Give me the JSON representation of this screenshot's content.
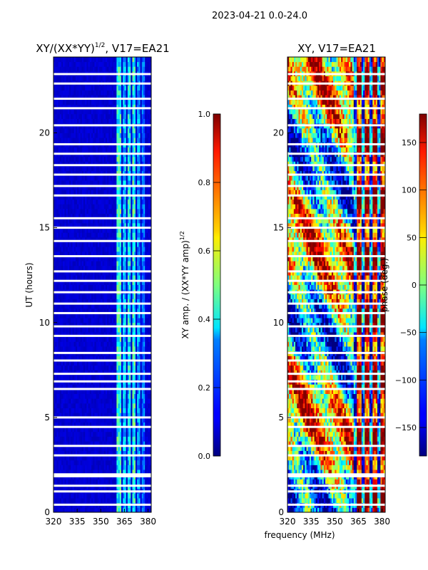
{
  "chart_data": [
    {
      "type": "heatmap",
      "suptitle": "2023-04-21 0.0-24.0",
      "title": "XY/(XX*YY)",
      "title_superscript": "1/2",
      "title_suffix": ", V17=EA21",
      "xlabel": "",
      "ylabel": "UT (hours)",
      "xlim": [
        320,
        382
      ],
      "ylim": [
        0,
        24
      ],
      "xticks": [
        320,
        335,
        350,
        365,
        380
      ],
      "yticks": [
        0,
        5,
        10,
        15,
        20
      ],
      "colorbar": {
        "label": "XY amp. / (XX*YY amp)",
        "label_superscript": "1/2",
        "range": [
          0.0,
          1.0
        ],
        "ticks": [
          "0.0",
          "0.2",
          "0.4",
          "0.6",
          "0.8",
          "1.0"
        ],
        "colormap": "jet"
      },
      "gaps_hours": [
        0.4,
        1.1,
        1.4,
        1.9,
        2.0,
        3.0,
        3.5,
        4.5,
        5.0,
        6.5,
        6.9,
        7.3,
        8.0,
        8.4,
        9.3,
        9.8,
        10.5,
        11.0,
        11.6,
        12.2,
        12.7,
        13.5,
        14.3,
        15.0,
        15.5,
        16.7,
        17.2,
        17.8,
        18.3,
        18.9,
        19.4,
        20.4,
        21.3,
        21.8,
        22.6,
        23.1
      ],
      "description_bands": [
        {
          "from": 360,
          "to": 363,
          "level": 0.45
        },
        {
          "from": 364,
          "to": 366,
          "level": 0.35
        },
        {
          "from": 367,
          "to": 369,
          "level": 0.4
        },
        {
          "from": 370,
          "to": 372,
          "level": 0.45
        },
        {
          "from": 373,
          "to": 375,
          "level": 0.3
        },
        {
          "from": 376,
          "to": 378,
          "level": 0.25
        }
      ]
    },
    {
      "type": "heatmap",
      "title": "XY, V17=EA21",
      "xlabel": "frequency (MHz)",
      "ylabel": "",
      "xlim": [
        320,
        382
      ],
      "ylim": [
        0,
        24
      ],
      "xticks": [
        320,
        335,
        350,
        365,
        380
      ],
      "yticks": [
        0,
        5,
        10,
        15,
        20
      ],
      "colorbar": {
        "label": "phase (deg.)",
        "range": [
          -180,
          180
        ],
        "ticks": [
          "150",
          "100",
          "50",
          "0",
          "−50",
          "−100",
          "−150"
        ],
        "tick_values": [
          150,
          100,
          50,
          0,
          -50,
          -100,
          -150
        ],
        "colormap": "jet"
      },
      "gaps_hours": [
        0.4,
        1.1,
        1.4,
        1.9,
        2.0,
        3.0,
        3.5,
        4.5,
        5.0,
        6.5,
        6.9,
        7.3,
        8.0,
        8.4,
        9.3,
        9.8,
        10.5,
        11.0,
        11.6,
        12.2,
        12.7,
        13.5,
        14.3,
        15.0,
        15.5,
        16.7,
        17.2,
        17.8,
        18.3,
        18.9,
        19.4,
        20.4,
        21.3,
        21.8,
        22.6,
        23.1
      ]
    }
  ]
}
